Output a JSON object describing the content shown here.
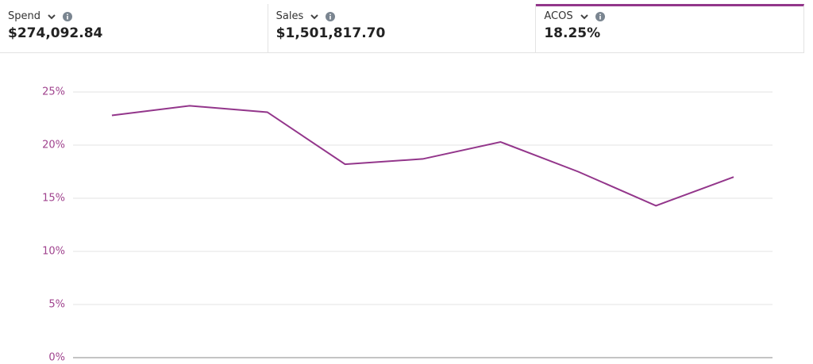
{
  "metrics": [
    {
      "label": "Spend",
      "value": "$274,092.84"
    },
    {
      "label": "Sales",
      "value": "$1,501,817.70"
    },
    {
      "label": "ACOS",
      "value": "18.25%"
    }
  ],
  "chart_data": {
    "type": "line",
    "categories": [
      null,
      null,
      null,
      null,
      null,
      null,
      null,
      null,
      null
    ],
    "series": [
      {
        "name": "ACOS",
        "color": "#93368b",
        "values": [
          22.8,
          23.7,
          23.1,
          18.2,
          18.7,
          20.3,
          17.5,
          14.3,
          17.0
        ]
      }
    ],
    "ylim": [
      0,
      25
    ],
    "yticks": [
      {
        "value": 0,
        "label": "0%"
      },
      {
        "value": 5,
        "label": "5%"
      },
      {
        "value": 10,
        "label": "10%"
      },
      {
        "value": 15,
        "label": "15%"
      },
      {
        "value": 20,
        "label": "20%"
      },
      {
        "value": 25,
        "label": "25%"
      }
    ],
    "grid": true
  }
}
